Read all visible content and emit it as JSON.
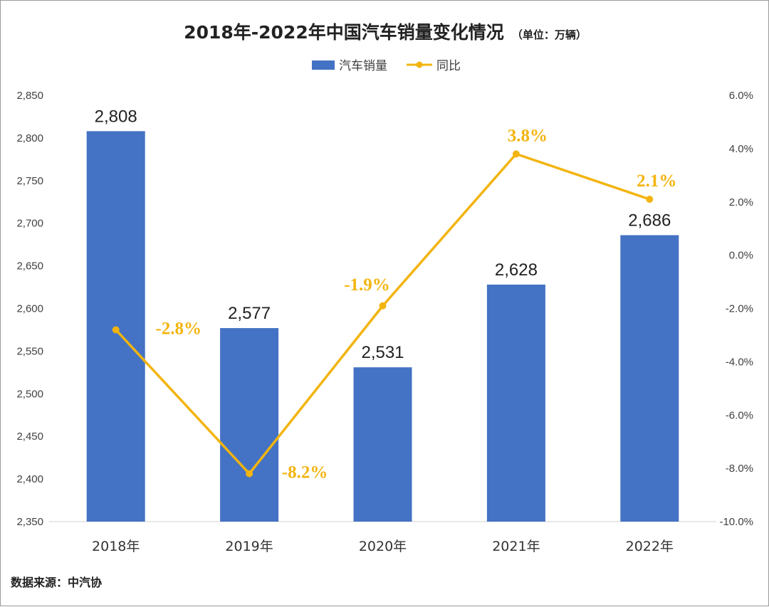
{
  "chart_data": {
    "type": "bar+line",
    "title": "2018年-2022年中国汽车销量变化情况",
    "unit_note": "（单位：万辆）",
    "categories": [
      "2018年",
      "2019年",
      "2020年",
      "2021年",
      "2022年"
    ],
    "series": [
      {
        "name": "汽车销量",
        "type": "bar",
        "axis": "left",
        "color": "#4472C4",
        "values": [
          2808,
          2577,
          2531,
          2628,
          2686
        ],
        "labels": [
          "2,808",
          "2,577",
          "2,531",
          "2,628",
          "2,686"
        ]
      },
      {
        "name": "同比",
        "type": "line",
        "axis": "right",
        "color": "#F2B40F",
        "values": [
          -2.8,
          -8.2,
          -1.9,
          3.8,
          2.1
        ],
        "labels": [
          "-2.8%",
          "-8.2%",
          "-1.9%",
          "3.8%",
          "2.1%"
        ]
      }
    ],
    "y_left": {
      "min": 2350,
      "max": 2850,
      "step": 50,
      "tick_labels": [
        "2,350",
        "2,400",
        "2,450",
        "2,500",
        "2,550",
        "2,600",
        "2,650",
        "2,700",
        "2,750",
        "2,800",
        "2,850"
      ]
    },
    "y_right": {
      "min": -10,
      "max": 6,
      "step": 2,
      "tick_labels": [
        "-10.0%",
        "-8.0%",
        "-6.0%",
        "-4.0%",
        "-2.0%",
        "0.0%",
        "2.0%",
        "4.0%",
        "6.0%"
      ]
    },
    "legend_position": "top-center",
    "grid": false,
    "source": "数据来源：中汽协"
  }
}
